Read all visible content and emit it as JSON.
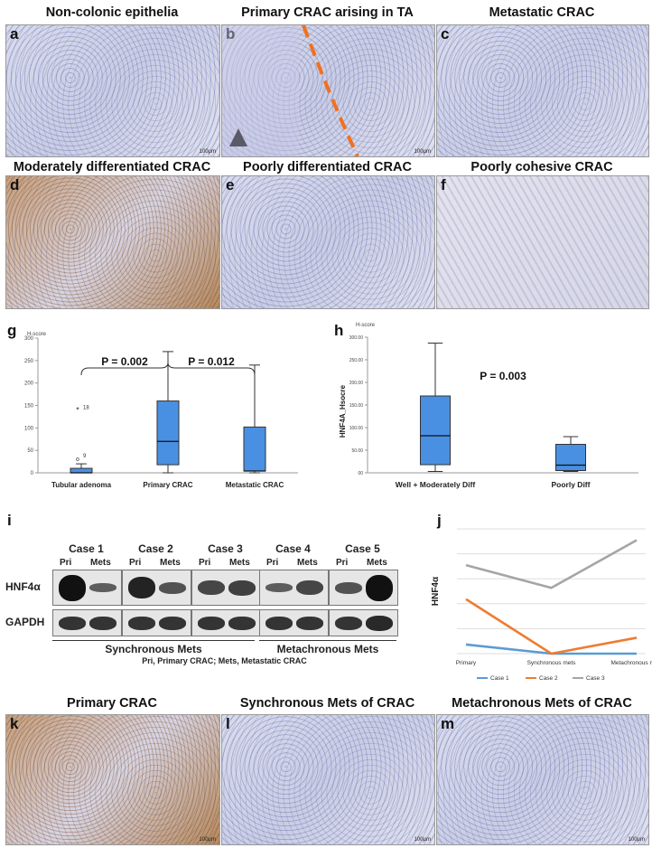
{
  "panels_top": [
    {
      "letter": "a",
      "title": "Non-colonic epithelia",
      "scale": "100μm"
    },
    {
      "letter": "b",
      "title": "Primary CRAC arising in TA",
      "scale": "100μm"
    },
    {
      "letter": "c",
      "title": "Metastatic CRAC",
      "scale": ""
    },
    {
      "letter": "d",
      "title": "Moderately differentiated CRAC",
      "scale": ""
    },
    {
      "letter": "e",
      "title": "Poorly differentiated CRAC",
      "scale": ""
    },
    {
      "letter": "f",
      "title": "Poorly cohesive CRAC",
      "scale": ""
    }
  ],
  "panels_bottom": [
    {
      "letter": "k",
      "title": "Primary CRAC",
      "scale": "100μm"
    },
    {
      "letter": "l",
      "title": "Synchronous Mets of CRAC",
      "scale": "100μm"
    },
    {
      "letter": "m",
      "title": "Metachronous Mets of CRAC",
      "scale": "100μm"
    }
  ],
  "panel_g": {
    "letter": "g",
    "chart_data": {
      "type": "box",
      "ylabel": "H-score",
      "ylim": [
        0,
        300
      ],
      "yticks": [
        0,
        50,
        100,
        150,
        200,
        250,
        300
      ],
      "categories": [
        "Tubular adenoma",
        "Primary CRAC",
        "Metastatic CRAC"
      ],
      "boxes": [
        {
          "min": 0,
          "q1": 0,
          "median": 0,
          "q3": 10,
          "max": 20
        },
        {
          "min": 0,
          "q1": 18,
          "median": 70,
          "q3": 160,
          "max": 270
        },
        {
          "min": 0,
          "q1": 4,
          "median": 4,
          "q3": 102,
          "max": 240
        }
      ],
      "outliers": [
        {
          "category": 0,
          "value": 140,
          "label": "18",
          "marker": "*"
        },
        {
          "category": 0,
          "value": 32,
          "label": "9",
          "marker": "o"
        }
      ],
      "annotations": [
        {
          "text": "P = 0.002"
        },
        {
          "text": "P = 0.012"
        }
      ],
      "color": "#4a90e2"
    }
  },
  "panel_h": {
    "letter": "h",
    "chart_data": {
      "type": "box",
      "ylabel_top": "H-score",
      "ylabel": "HNF4A_Hsocre",
      "ylim": [
        0,
        300
      ],
      "yticks": [
        "00",
        "50.00",
        "100.00",
        "150.00",
        "200.00",
        "250.00",
        "300.00"
      ],
      "ytick_values": [
        0,
        50,
        100,
        150,
        200,
        250,
        300
      ],
      "categories": [
        "Well + Moderately Diff",
        "Poorly Diff"
      ],
      "boxes": [
        {
          "min": 3,
          "q1": 18,
          "median": 82,
          "q3": 170,
          "max": 287
        },
        {
          "min": 3,
          "q1": 5,
          "median": 17,
          "q3": 63,
          "max": 80
        }
      ],
      "annotations": [
        {
          "text": "P = 0.003"
        }
      ],
      "color": "#4a90e2"
    }
  },
  "panel_i": {
    "letter": "i",
    "cases": [
      "Case 1",
      "Case 2",
      "Case 3",
      "Case 4",
      "Case 5"
    ],
    "lane_pri": "Pri",
    "lane_mets": "Mets",
    "row_labels": [
      "HNF4α",
      "GAPDH"
    ],
    "hnf4a_intensity": [
      [
        1.0,
        0.35
      ],
      [
        0.85,
        0.45
      ],
      [
        0.55,
        0.6
      ],
      [
        0.35,
        0.55
      ],
      [
        0.45,
        1.0
      ]
    ],
    "gapdh_intensity": [
      [
        0.7,
        0.7
      ],
      [
        0.7,
        0.7
      ],
      [
        0.7,
        0.7
      ],
      [
        0.7,
        0.7
      ],
      [
        0.7,
        0.8
      ]
    ],
    "group_labels": [
      "Synchronous Mets",
      "Metachronous Mets"
    ],
    "caption": "Pri, Primary CRAC;  Mets, Metastatic CRAC"
  },
  "panel_j": {
    "letter": "j",
    "chart_data": {
      "type": "line",
      "ylabel": "HNF4α",
      "categories": [
        "Primary",
        "Synchronous mets",
        "Metachronous mets"
      ],
      "ylim": [
        0,
        1.1
      ],
      "series": [
        {
          "name": "Case 1",
          "color": "#5b9bd5",
          "values": [
            0.08,
            0.0,
            0.0
          ]
        },
        {
          "name": "Case 2",
          "color": "#ed7d31",
          "values": [
            0.48,
            0.0,
            0.14
          ]
        },
        {
          "name": "Case 3",
          "color": "#a5a5a5",
          "values": [
            0.78,
            0.58,
            1.0
          ]
        }
      ]
    }
  }
}
